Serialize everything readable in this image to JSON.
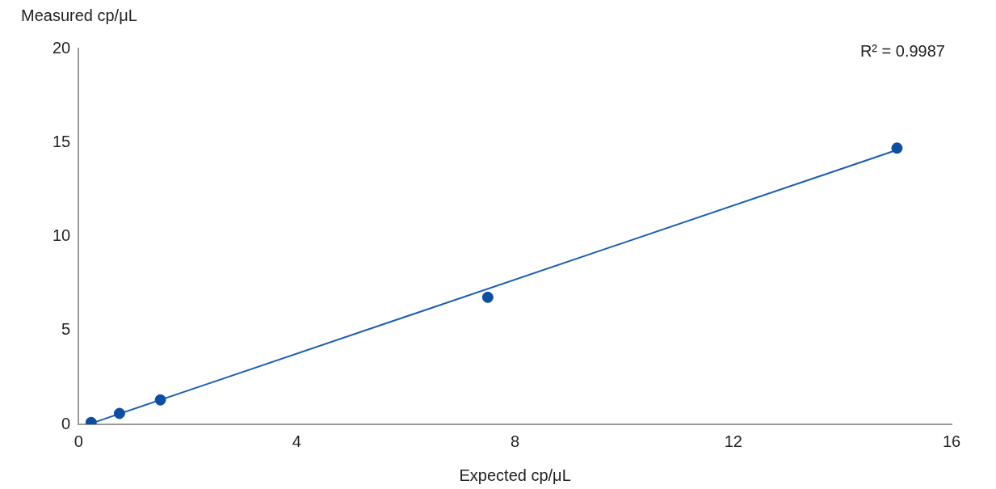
{
  "chart_data": {
    "type": "scatter",
    "xlabel": "Expected cp/μL",
    "ylabel": "Measured cp/μL",
    "annotations": [
      "R² = 0.9987"
    ],
    "series": [
      {
        "color": "#0b4ea2",
        "x": [
          0.23,
          0.75,
          1.5,
          7.5,
          15
        ],
        "values": [
          0.1,
          0.58,
          1.3,
          6.76,
          14.7
        ]
      },
      {
        "type": "line",
        "marker": "none",
        "color": "#1a5fb4",
        "x": [
          0.23,
          15
        ],
        "values": [
          0.05,
          14.6
        ]
      }
    ],
    "xlim": [
      0,
      16
    ],
    "xticks": [
      0,
      4,
      8,
      12,
      16
    ],
    "ylim": [
      0,
      20
    ],
    "yticks": [
      0,
      5,
      10,
      15,
      20
    ],
    "grid": false,
    "legend": false,
    "marker": "circle",
    "line_style": "solid"
  }
}
